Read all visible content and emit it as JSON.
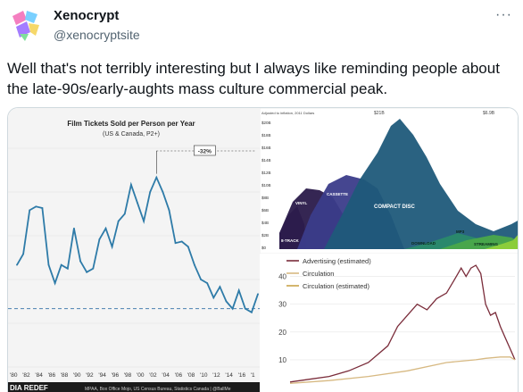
{
  "author": {
    "name": "Xenocrypt",
    "handle": "@xenocryptsite"
  },
  "more_icon": "more-horizontal-icon",
  "tweet_text": "Well that's not terribly interesting but I always like reminding people about the late-90s/early-aughts mass culture commercial peak.",
  "chart_data": [
    {
      "type": "line",
      "title": "Film Tickets Sold per Person per Year",
      "subtitle": "(US & Canada, P2+)",
      "x": [
        "'80",
        "'81",
        "'82",
        "'83",
        "'84",
        "'85",
        "'86",
        "'87",
        "'88",
        "'89",
        "'90",
        "'91",
        "'92",
        "'93",
        "'94",
        "'95",
        "'96",
        "'97",
        "'98",
        "'99",
        "'00",
        "'01",
        "'02",
        "'03",
        "'04",
        "'05",
        "'06",
        "'07",
        "'08",
        "'09",
        "'10",
        "'11",
        "'12",
        "'13",
        "'14",
        "'15",
        "'16",
        "'17",
        "'18"
      ],
      "x_tick_labels": [
        "'80",
        "'82",
        "'84",
        "'86",
        "'88",
        "'90",
        "'92",
        "'94",
        "'96",
        "'98",
        "'00",
        "'02",
        "'04",
        "'06",
        "'08",
        "'10",
        "'12",
        "'14",
        "'16",
        "'1"
      ],
      "values": [
        4.6,
        4.75,
        5.35,
        5.4,
        5.38,
        4.6,
        4.35,
        4.6,
        4.55,
        5.1,
        4.65,
        4.5,
        4.55,
        4.95,
        5.1,
        4.85,
        5.2,
        5.3,
        5.7,
        5.45,
        5.2,
        5.6,
        5.8,
        5.6,
        5.35,
        4.9,
        4.92,
        4.85,
        4.6,
        4.4,
        4.35,
        4.15,
        4.3,
        4.1,
        4.0,
        4.25,
        4.0,
        3.95,
        4.2
      ],
      "baseline_dashed": true,
      "annotation": "-32%",
      "footer_left": "DIA REDEF",
      "footer_right": "MPAA, Box Office Mojo, US Census Bureau, Statistics Canada | @BallMe"
    },
    {
      "type": "area",
      "top_note_left": "Adjusted to inflation, 2011 Dollars",
      "peak_label": "$21B",
      "end_label": "$6.9B",
      "y_tick_labels": [
        "$20B",
        "$18B",
        "$16B",
        "$14B",
        "$12B",
        "$10B",
        "$8B",
        "$6B",
        "$4B",
        "$2B",
        "$0"
      ],
      "series": [
        {
          "name": "8-TRACK",
          "color": "#4a2c6a"
        },
        {
          "name": "VINYL",
          "color": "#2a1a4a"
        },
        {
          "name": "CASSETTE",
          "color": "#3b3c8a"
        },
        {
          "name": "COMPACT DISC",
          "color": "#1f5a7a"
        },
        {
          "name": "DOWNLOAD",
          "color": "#2a8a6a"
        },
        {
          "name": "MP3",
          "color": "#4aa84a"
        },
        {
          "name": "STREAMING",
          "color": "#8fcf3a"
        }
      ],
      "colors": {
        "background": "#ffffff"
      }
    },
    {
      "type": "line",
      "series": [
        {
          "name": "Advertising (estimated)",
          "color": "#7a2c3a"
        },
        {
          "name": "Circulation",
          "color": "#d7b982"
        },
        {
          "name": "Circulation (estimated)",
          "color": "#caa44a"
        }
      ],
      "y_tick_labels": [
        "40",
        "30",
        "20",
        "10"
      ],
      "ylim": [
        0,
        45
      ]
    }
  ]
}
